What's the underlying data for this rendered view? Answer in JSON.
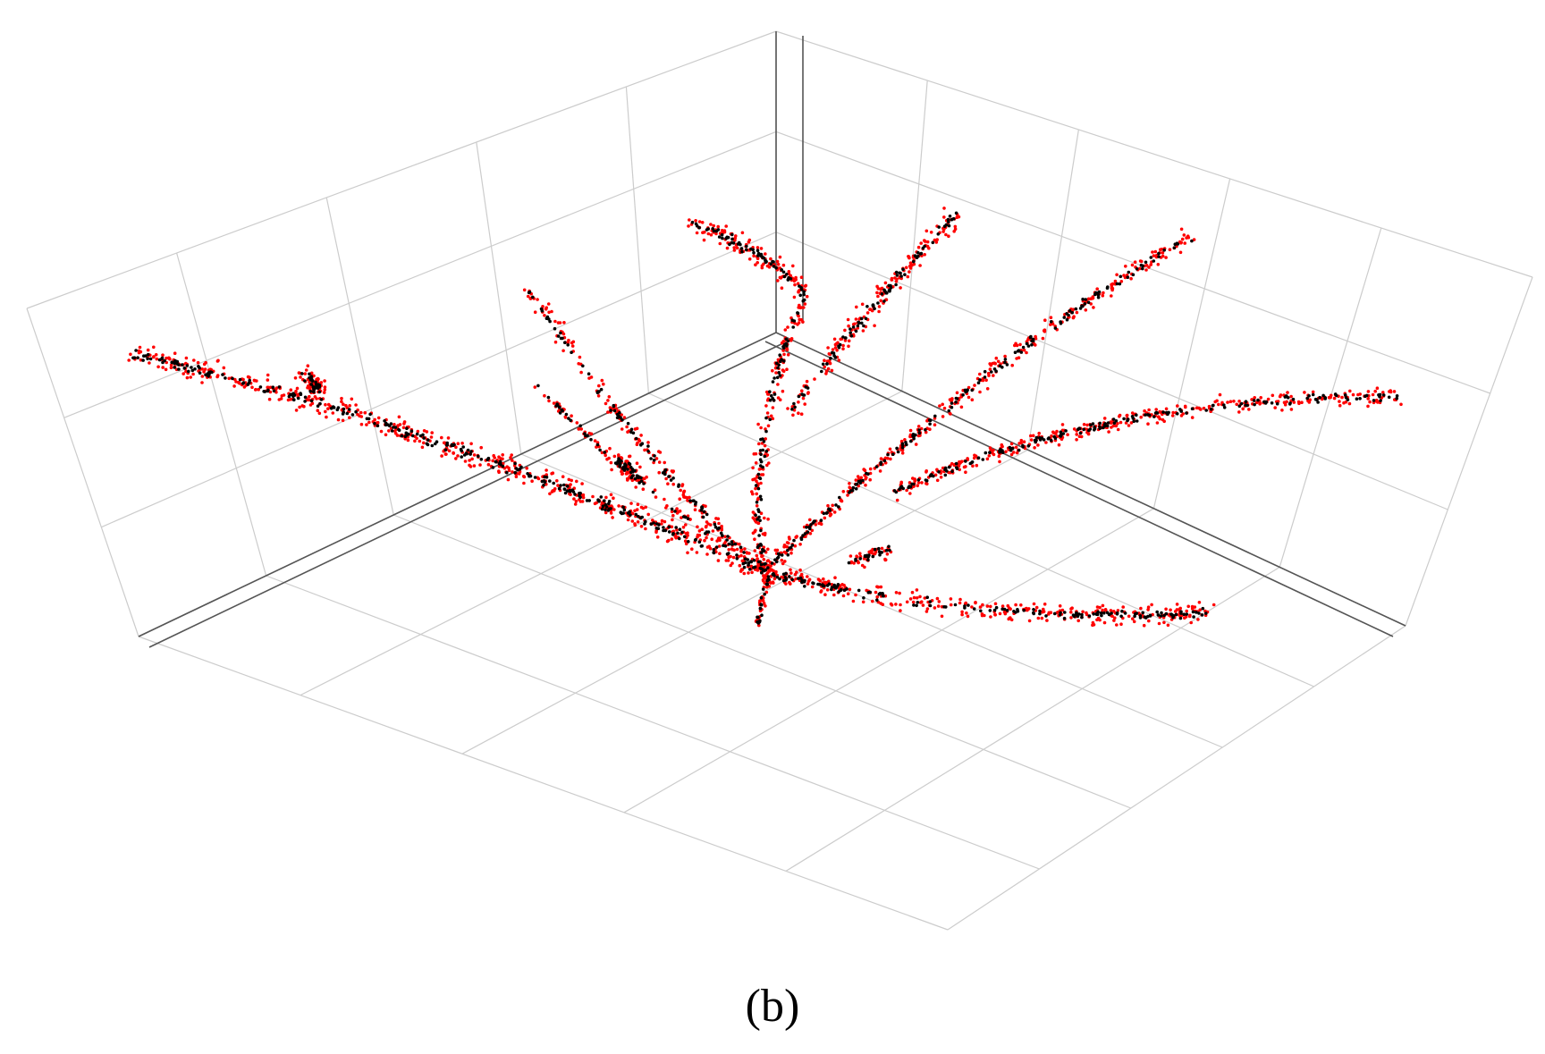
{
  "figure": {
    "caption": "(b)",
    "colors": {
      "background": "#ffffff",
      "grid": "#cccccc",
      "axis": "#555555",
      "points_primary": "#ff0000",
      "points_secondary": "#000000"
    }
  }
}
